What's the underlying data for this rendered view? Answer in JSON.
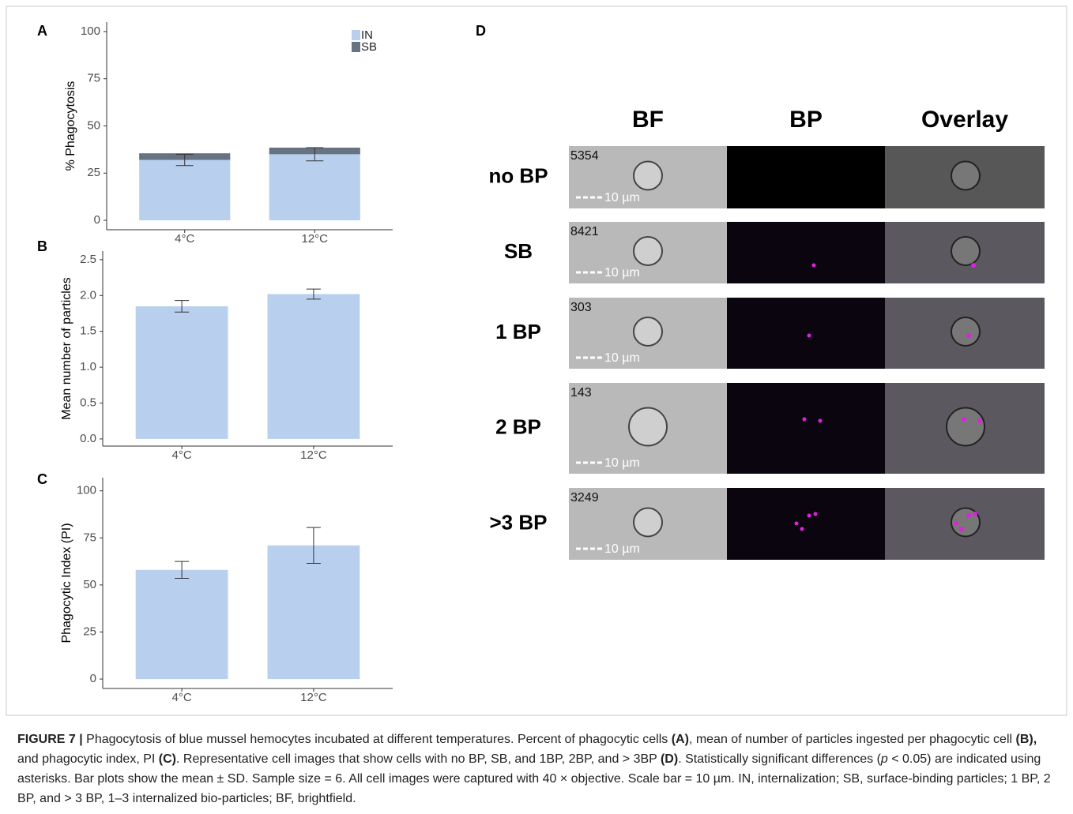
{
  "chart_data": [
    {
      "type": "bar",
      "stacked": true,
      "panel": "A",
      "ylabel": "% Phagocytosis",
      "categories": [
        "4°C",
        "12°C"
      ],
      "series": [
        {
          "name": "IN",
          "color": "#b8d0ee",
          "values": [
            32,
            35
          ],
          "errors": [
            3,
            3.5
          ]
        },
        {
          "name": "SB",
          "color": "#657382",
          "values": [
            3.5,
            3.5
          ]
        }
      ],
      "ylim": [
        -5,
        105
      ],
      "yticks": [
        0,
        25,
        50,
        75,
        100
      ],
      "legend": "top-right"
    },
    {
      "type": "bar",
      "panel": "B",
      "ylabel": "Mean number of particles",
      "categories": [
        "4°C",
        "12°C"
      ],
      "color": "#b8d0ee",
      "values": [
        1.85,
        2.02
      ],
      "errors": [
        0.08,
        0.07
      ],
      "ylim": [
        -0.1,
        2.62
      ],
      "yticks": [
        {
          "value": 0,
          "label": "0.0"
        },
        0.5,
        {
          "value": 1,
          "label": "1.0"
        },
        1.5,
        {
          "value": 2,
          "label": "2.0"
        },
        2.5
      ]
    },
    {
      "type": "bar",
      "panel": "C",
      "ylabel": "Phagocytic Index (PI)",
      "categories": [
        "4°C",
        "12°C"
      ],
      "color": "#b8d0ee",
      "values": [
        58,
        71
      ],
      "errors": [
        4.5,
        9.5
      ],
      "ylim": [
        -5,
        107
      ],
      "yticks": [
        0,
        25,
        50,
        75,
        100
      ]
    }
  ],
  "panel_d": {
    "label": "D",
    "columns": [
      "BF",
      "BP",
      "Overlay"
    ],
    "rows": [
      {
        "label": "no BP",
        "id": "5354"
      },
      {
        "label": "SB",
        "id": "8421"
      },
      {
        "label": "1 BP",
        "id": "303"
      },
      {
        "label": "2 BP",
        "id": "143"
      },
      {
        "label": ">3 BP",
        "id": "3249"
      }
    ],
    "scale_bar": "10 µm"
  },
  "caption": [
    "FIGURE 7 |",
    " Phagocytosis of blue mussel hemocytes incubated at different temperatures. Percent of phagocytic cells ",
    "(A)",
    ", mean of number of particles ingested per phagocytic cell ",
    "(B),",
    " and phagocytic index, PI ",
    "(C)",
    ". Representative cell images that show cells with no BP, SB, and 1BP, 2BP, and > 3BP ",
    "(D)",
    ". Statistically significant differences (",
    "p",
    " < 0.05) are indicated using asterisks. Bar plots show the mean ± SD. Sample size = 6. All cell images were captured with 40 × objective. Scale bar = 10 µm. IN, internalization; SB, surface-binding particles; 1 BP, 2 BP, and > 3 BP, 1–3 internalized bio-particles; BF, brightfield."
  ]
}
